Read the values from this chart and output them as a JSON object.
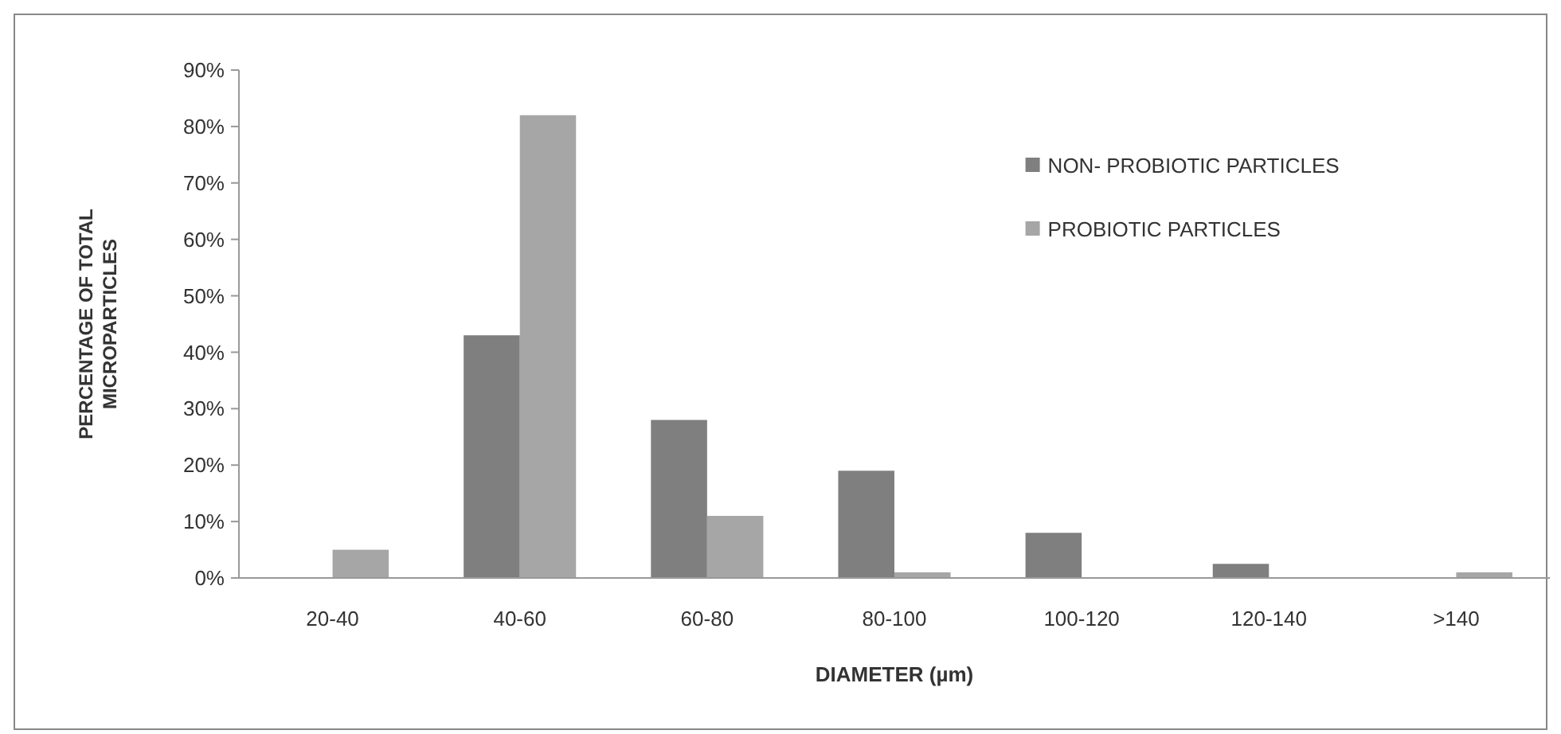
{
  "chart_data": {
    "type": "bar",
    "xlabel": "DIAMETER (µm)",
    "ylabel": "PERCENTAGE OF TOTAL MICROPARTICLES",
    "categories": [
      "20-40",
      "40-60",
      "60-80",
      "80-100",
      "100-120",
      "120-140",
      ">140"
    ],
    "series": [
      {
        "name": "NON- PROBIOTIC PARTICLES",
        "color": "#7f7f7f",
        "values": [
          0,
          43,
          28,
          19,
          8,
          2.5,
          0
        ]
      },
      {
        "name": "PROBIOTIC PARTICLES",
        "color": "#a6a6a6",
        "values": [
          5,
          82,
          11,
          1,
          0,
          0,
          1
        ]
      }
    ],
    "ylim": [
      0,
      90
    ],
    "yticks": [
      {
        "value": 0,
        "label": "0%"
      },
      {
        "value": 10,
        "label": "10%"
      },
      {
        "value": 20,
        "label": "20%"
      },
      {
        "value": 30,
        "label": "30%"
      },
      {
        "value": 40,
        "label": "40%"
      },
      {
        "value": 50,
        "label": "50%"
      },
      {
        "value": 60,
        "label": "60%"
      },
      {
        "value": 70,
        "label": "70%"
      },
      {
        "value": 80,
        "label": "80%"
      },
      {
        "value": 90,
        "label": "90%"
      }
    ],
    "grid": false,
    "legend": "top right"
  }
}
